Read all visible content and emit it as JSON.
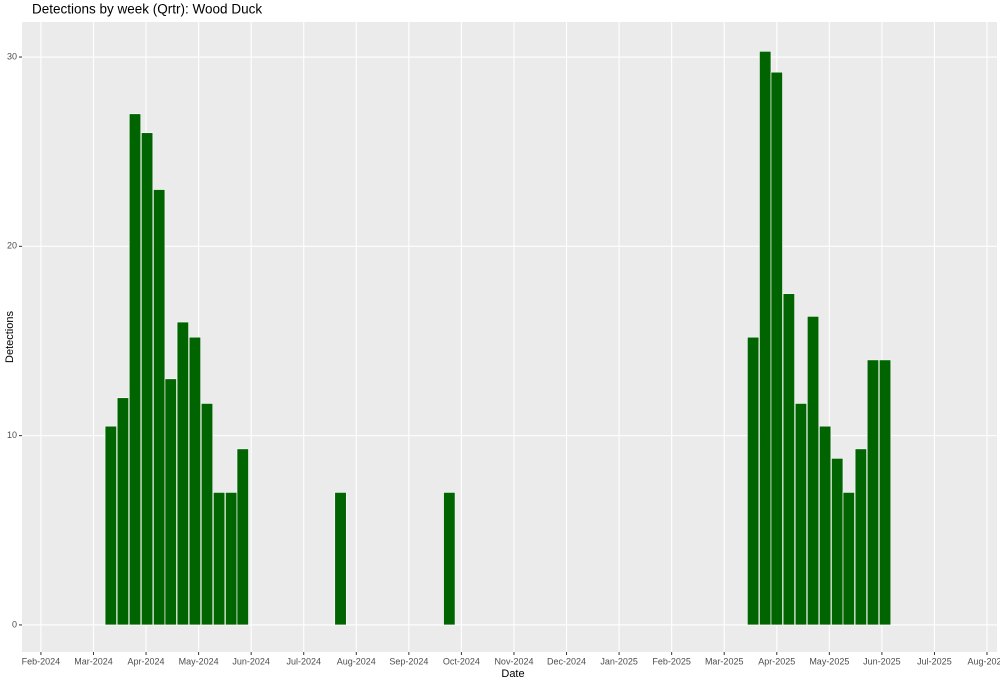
{
  "chart_data": {
    "type": "bar",
    "title": "Detections by week (Qrtr): Wood Duck",
    "x_label": "Date",
    "y_label": "Detections",
    "color": "#006400",
    "grid": true,
    "x": [
      1.33,
      1.56,
      1.79,
      2.02,
      2.25,
      2.47,
      2.7,
      2.93,
      3.16,
      3.39,
      3.62,
      3.84,
      5.7,
      7.77,
      13.55,
      13.78,
      14.0,
      14.23,
      14.46,
      14.69,
      14.92,
      15.15,
      15.37,
      15.6,
      15.83,
      16.06
    ],
    "values": [
      10.5,
      12,
      27,
      26,
      23,
      13,
      16,
      15.2,
      11.7,
      7,
      7,
      9.3,
      7,
      7,
      15.2,
      30.3,
      29.2,
      17.5,
      11.7,
      16.3,
      10.5,
      8.8,
      7,
      9.3,
      14,
      14
    ],
    "xlim": [
      -0.36,
      18.19
    ],
    "xticks": [
      {
        "value": 0,
        "label": "Feb-2024"
      },
      {
        "value": 1,
        "label": "Mar-2024"
      },
      {
        "value": 2,
        "label": "Apr-2024"
      },
      {
        "value": 3,
        "label": "May-2024"
      },
      {
        "value": 4,
        "label": "Jun-2024"
      },
      {
        "value": 5,
        "label": "Jul-2024"
      },
      {
        "value": 6,
        "label": "Aug-2024"
      },
      {
        "value": 7,
        "label": "Sep-2024"
      },
      {
        "value": 8,
        "label": "Oct-2024"
      },
      {
        "value": 9,
        "label": "Nov-2024"
      },
      {
        "value": 10,
        "label": "Dec-2024"
      },
      {
        "value": 11,
        "label": "Jan-2025"
      },
      {
        "value": 12,
        "label": "Feb-2025"
      },
      {
        "value": 13,
        "label": "Mar-2025"
      },
      {
        "value": 14,
        "label": "Apr-2025"
      },
      {
        "value": 15,
        "label": "May-2025"
      },
      {
        "value": 16,
        "label": "Jun-2025"
      },
      {
        "value": 17,
        "label": "Jul-2025"
      },
      {
        "value": 18,
        "label": "Aug-2025"
      }
    ],
    "ylim": [
      -1.43,
      31.85
    ],
    "yticks": [
      0,
      10,
      20,
      30
    ]
  }
}
